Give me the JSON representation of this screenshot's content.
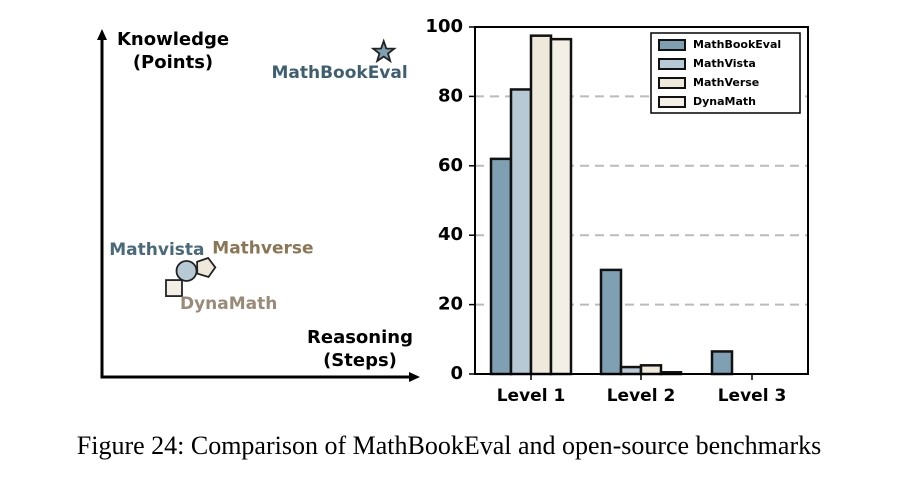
{
  "chart_data": [
    {
      "type": "scatter",
      "xlabel": [
        "Reasoning",
        "(Steps)"
      ],
      "ylabel": [
        "Knowledge",
        "(Points)"
      ],
      "xlim": [
        0,
        10
      ],
      "ylim": [
        0,
        10
      ],
      "series": [
        {
          "name": "MathBookEval",
          "marker": "star",
          "color": "#7f9fb3",
          "label_color": "#3f5f70",
          "x": [
            9.0
          ],
          "values": [
            9.5
          ]
        },
        {
          "name": "Mathvista",
          "marker": "circle",
          "color": "#b7c9d4",
          "label_color": "#4a6a7a",
          "x": [
            2.7
          ],
          "values": [
            3.1
          ]
        },
        {
          "name": "Mathverse",
          "marker": "pentagon",
          "color": "#efe9dc",
          "label_color": "#8a7555",
          "x": [
            3.3
          ],
          "values": [
            3.2
          ]
        },
        {
          "name": "DynaMath",
          "marker": "square",
          "color": "#f3efe6",
          "label_color": "#9a8a78",
          "x": [
            2.3
          ],
          "values": [
            2.6
          ]
        }
      ]
    },
    {
      "type": "bar",
      "categories": [
        "Level 1",
        "Level 2",
        "Level 3"
      ],
      "series": [
        {
          "name": "MathBookEval",
          "color": "#7f9fb3",
          "values": [
            62,
            30,
            6.5
          ]
        },
        {
          "name": "MathVista",
          "color": "#b7c9d4",
          "values": [
            82,
            2,
            0
          ]
        },
        {
          "name": "MathVerse",
          "color": "#efe9dc",
          "values": [
            97.5,
            2.5,
            0
          ]
        },
        {
          "name": "DynaMath",
          "color": "#f3efe6",
          "values": [
            96.5,
            0.5,
            0
          ]
        }
      ],
      "ylim": [
        0,
        100
      ],
      "yticks": [
        0,
        20,
        40,
        60,
        80,
        100
      ],
      "grid": true,
      "legend": "upper right"
    }
  ],
  "caption": "Figure 24: Comparison of MathBookEval and open-source benchmarks"
}
